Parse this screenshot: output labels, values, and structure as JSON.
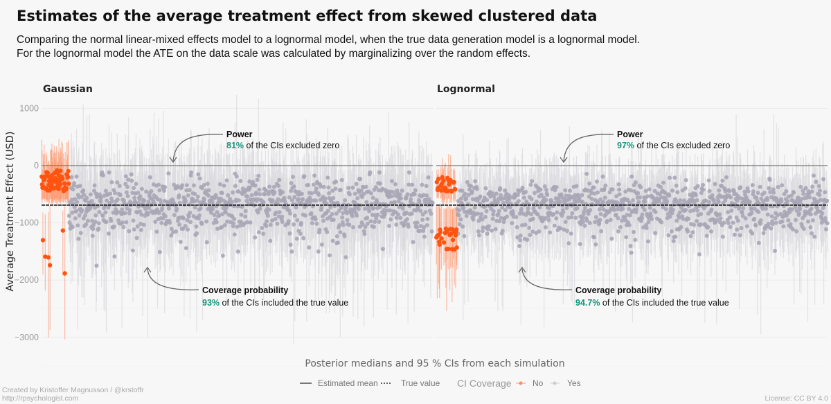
{
  "title": "Estimates of the average treatment effect from skewed clustered data",
  "subtitle_lines": [
    "Comparing the normal linear-mixed effects model to a lognormal model, when the true data generation model is a lognormal model.",
    "For the lognormal model the ATE on the data scale was calculated by marginalizing over the random effects."
  ],
  "footer": {
    "credit": "Created by Kristoffer Magnusson / @krstoffr",
    "url": "http://rpsychologist.com",
    "license": "License: CC BY 4.0"
  },
  "legend": {
    "estimated_mean": "Estimated mean",
    "true_value": "True value",
    "coverage_title": "CI Coverage",
    "no": "No",
    "yes": "Yes"
  },
  "colors": {
    "no": "#ff5410",
    "yes": "#a9a6b6",
    "highlight": "#14967a"
  },
  "chart_data": {
    "type": "scatter",
    "title": "Estimates of the average treatment effect from skewed clustered data",
    "xlabel": "Posterior medians and 95 % CIs from each simulation",
    "ylabel": "Average Treatment Effect  (USD)",
    "ylim": [
      -3700,
      1250
    ],
    "yticks": [
      1000,
      0,
      -1000,
      -2000,
      -3000
    ],
    "ytick_labels": [
      "1000",
      "0",
      "−1000",
      "−2000",
      "−3000"
    ],
    "true_value": -690,
    "reference_zero": 0,
    "grid": true,
    "legend_position": "bottom",
    "panels": [
      {
        "name": "Gaussian",
        "n_sims": 1000,
        "coverage_pct": 93,
        "power_pct": 81,
        "power": {
          "title": "Power",
          "value": "81%",
          "text": " of the CIs excluded zero"
        },
        "coverage": {
          "title": "Coverage probability",
          "value": "93%",
          "text": " of the CIs included the true value"
        }
      },
      {
        "name": "Lognormal",
        "n_sims": 1000,
        "coverage_pct": 94.7,
        "power_pct": 97,
        "power": {
          "title": "Power",
          "value": "97%",
          "text": " of the CIs excluded zero"
        },
        "coverage": {
          "title": "Coverage probability",
          "value": "94.7%",
          "text": " of the CIs included the true value"
        }
      }
    ]
  }
}
